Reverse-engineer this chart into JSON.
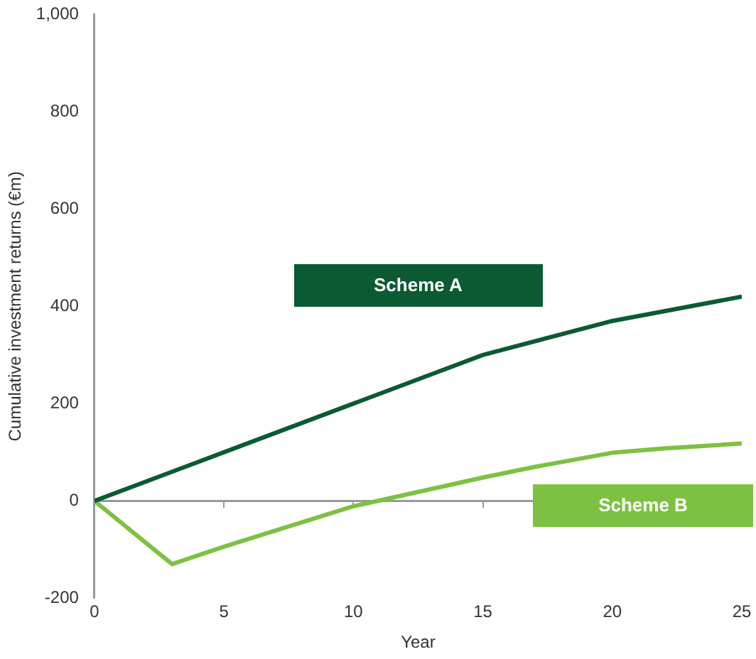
{
  "chart_data": {
    "type": "line",
    "xlabel": "Year",
    "ylabel": "Cumulative investment returns (€m)",
    "xlim": [
      0,
      25
    ],
    "xticks": [
      0,
      5,
      10,
      15,
      20,
      25
    ],
    "ylim": [
      -200,
      1000
    ],
    "yticks": [
      -200,
      0,
      200,
      400,
      600,
      {
        "value": 800,
        "label": "800"
      },
      {
        "value": 1000,
        "label": "1,000"
      }
    ],
    "grid": false,
    "legend": false,
    "marker": "none",
    "ref_lines": [
      {
        "axis": "y",
        "value": 0,
        "color": "#999999"
      }
    ],
    "series": [
      {
        "name": "Scheme A",
        "color": "#0b5a34",
        "x": [
          0,
          5,
          10,
          15,
          20,
          25
        ],
        "values": [
          0,
          100,
          200,
          300,
          370,
          420
        ]
      },
      {
        "name": "Scheme B",
        "color": "#7dc142",
        "x": [
          0,
          3,
          5,
          10,
          15,
          17,
          20,
          22,
          25
        ],
        "values": [
          0,
          -130,
          -94,
          -11,
          48,
          70,
          99,
          108,
          118
        ]
      }
    ]
  }
}
